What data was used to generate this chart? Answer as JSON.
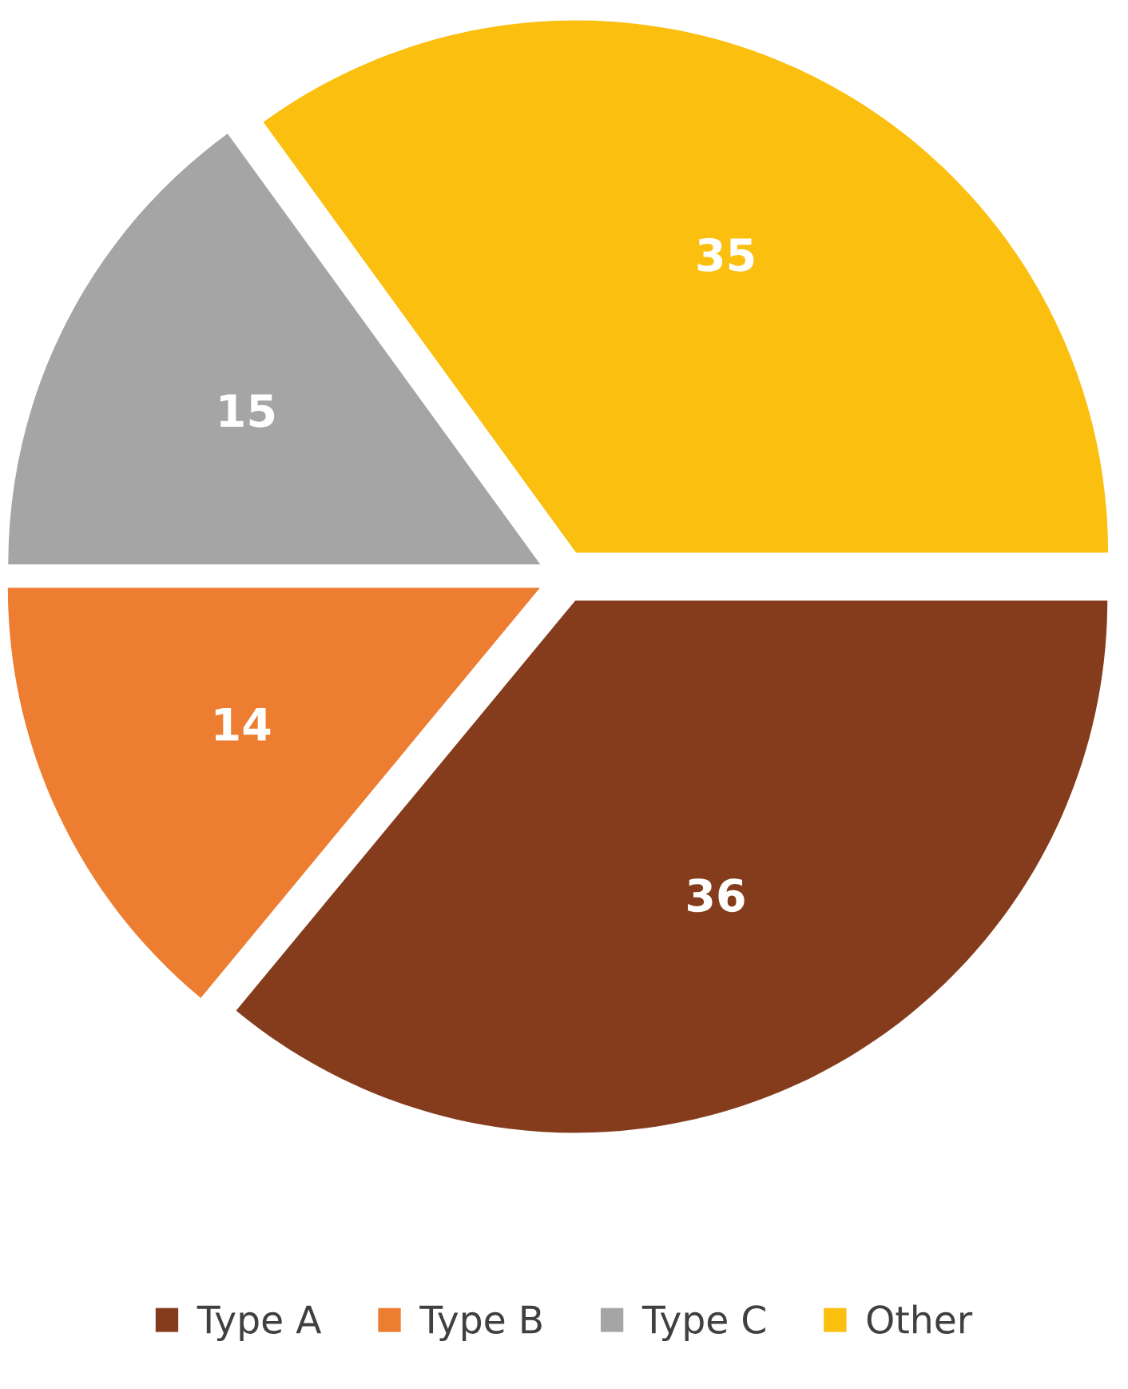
{
  "chart_data": {
    "type": "pie",
    "categories": [
      "Type A",
      "Type B",
      "Type C",
      "Other"
    ],
    "values": [
      36,
      14,
      15,
      35
    ],
    "colors": [
      "#843c1c",
      "#ed7d31",
      "#a5a5a5",
      "#fbbf10"
    ],
    "data_labels": true,
    "legend": "bottom"
  }
}
